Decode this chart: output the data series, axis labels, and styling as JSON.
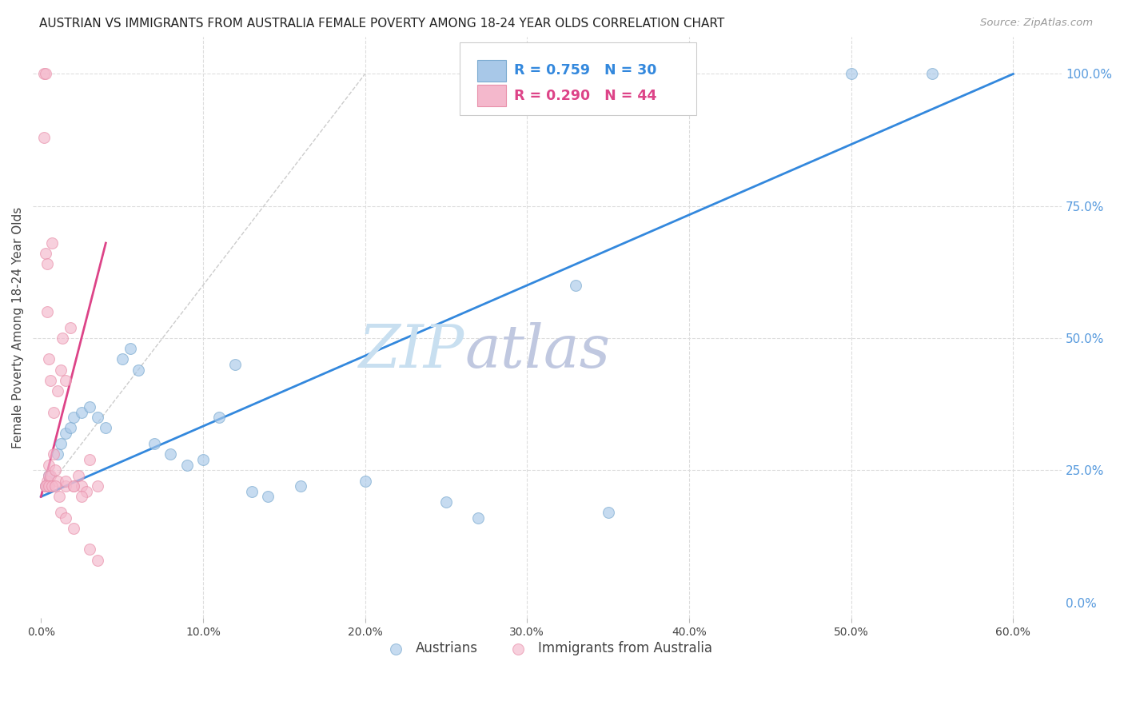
{
  "title": "AUSTRIAN VS IMMIGRANTS FROM AUSTRALIA FEMALE POVERTY AMONG 18-24 YEAR OLDS CORRELATION CHART",
  "source": "Source: ZipAtlas.com",
  "ylabel": "Female Poverty Among 18-24 Year Olds",
  "xlabel_ticks": [
    0.0,
    10.0,
    20.0,
    30.0,
    40.0,
    50.0,
    60.0
  ],
  "ylabel_ticks": [
    0.0,
    25.0,
    50.0,
    75.0,
    100.0
  ],
  "xlim": [
    -0.5,
    63.0
  ],
  "ylim": [
    -3.0,
    107.0
  ],
  "blue_R": 0.759,
  "blue_N": 30,
  "pink_R": 0.29,
  "pink_N": 44,
  "blue_color": "#a8c8e8",
  "pink_color": "#f4b8cc",
  "blue_edge": "#7aaad0",
  "pink_edge": "#e890aa",
  "trend_blue": "#3388dd",
  "trend_pink": "#dd4488",
  "diagonal_color": "#cccccc",
  "watermark_zip_color": "#c8dff0",
  "watermark_atlas_color": "#c0c8e0",
  "title_color": "#222222",
  "axis_label_color": "#444444",
  "right_tick_color": "#5599dd",
  "background_color": "#ffffff",
  "grid_color": "#dddddd",
  "blue_x": [
    0.3,
    0.5,
    1.0,
    1.2,
    1.5,
    1.8,
    2.0,
    2.5,
    3.0,
    3.5,
    4.0,
    5.0,
    5.5,
    6.0,
    7.0,
    8.0,
    9.0,
    10.0,
    11.0,
    12.0,
    13.0,
    14.0,
    16.0,
    20.0,
    25.0,
    27.0,
    33.0,
    35.0,
    50.0,
    55.0
  ],
  "blue_y": [
    22.0,
    24.0,
    28.0,
    30.0,
    32.0,
    33.0,
    35.0,
    36.0,
    37.0,
    35.0,
    33.0,
    46.0,
    48.0,
    44.0,
    30.0,
    28.0,
    26.0,
    27.0,
    35.0,
    45.0,
    21.0,
    20.0,
    22.0,
    23.0,
    19.0,
    16.0,
    60.0,
    17.0,
    100.0,
    100.0
  ],
  "pink_x": [
    0.2,
    0.3,
    0.3,
    0.4,
    0.4,
    0.5,
    0.5,
    0.6,
    0.7,
    0.8,
    0.9,
    1.0,
    1.2,
    1.3,
    1.5,
    1.5,
    1.8,
    2.0,
    2.3,
    2.5,
    2.8,
    3.0,
    3.5,
    0.2,
    0.3,
    0.4,
    0.5,
    0.6,
    0.8,
    1.0,
    1.2,
    1.5,
    2.0,
    2.5,
    3.0,
    0.3,
    0.5,
    0.7,
    0.9,
    1.1,
    1.5,
    2.0,
    3.5,
    0.4
  ],
  "pink_y": [
    100.0,
    100.0,
    22.0,
    22.0,
    23.0,
    24.0,
    26.0,
    24.0,
    68.0,
    28.0,
    25.0,
    23.0,
    44.0,
    50.0,
    42.0,
    22.0,
    52.0,
    22.0,
    24.0,
    22.0,
    21.0,
    27.0,
    22.0,
    88.0,
    66.0,
    55.0,
    46.0,
    42.0,
    36.0,
    40.0,
    17.0,
    23.0,
    22.0,
    20.0,
    10.0,
    22.0,
    22.0,
    22.0,
    22.0,
    20.0,
    16.0,
    14.0,
    8.0,
    64.0
  ],
  "marker_size": 100,
  "marker_alpha": 0.65,
  "legend_text_blue": "#3388dd",
  "legend_text_pink": "#dd4488",
  "legend_box_edge": "#cccccc"
}
